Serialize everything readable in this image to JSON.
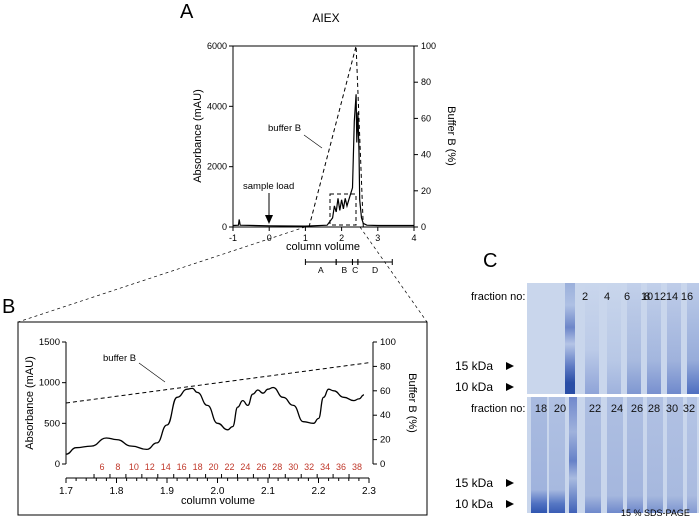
{
  "panels": {
    "a": "A",
    "b": "B",
    "c": "C"
  },
  "chart_data": [
    {
      "type": "line",
      "title": "AIEX",
      "xlabel": "column volume",
      "ylabel": "Absorbance (mAU)",
      "ylabel_right": "Buffer B (%)",
      "xlim": [
        -1,
        4
      ],
      "ylim": [
        0,
        6000
      ],
      "ylim_right": [
        0,
        100
      ],
      "x_ticks": [
        "-1",
        "0",
        "1",
        "2",
        "3",
        "4"
      ],
      "y_ticks": [
        "0",
        "2000",
        "4000",
        "6000"
      ],
      "y_right_ticks": [
        "0",
        "20",
        "40",
        "60",
        "80",
        "100"
      ],
      "series": [
        {
          "name": "absorbance",
          "x": [
            -1,
            -0.85,
            -0.83,
            -0.8,
            0,
            1.0,
            1.6,
            1.75,
            1.8,
            1.85,
            1.9,
            1.95,
            2.0,
            2.05,
            2.1,
            2.15,
            2.2,
            2.3,
            2.35,
            2.4,
            2.42,
            2.45,
            2.48,
            2.5,
            2.55,
            2.6,
            2.7,
            3.0,
            4.0
          ],
          "y": [
            50,
            60,
            250,
            60,
            40,
            30,
            60,
            300,
            700,
            500,
            950,
            550,
            900,
            600,
            950,
            700,
            900,
            1300,
            3500,
            4400,
            2800,
            3800,
            2500,
            900,
            300,
            120,
            60,
            50,
            50
          ]
        },
        {
          "name": "buffer B",
          "x": [
            1.1,
            2.4,
            2.6
          ],
          "y": [
            0,
            100,
            0
          ]
        }
      ],
      "fractions": [
        {
          "label": "A",
          "start": 1.0,
          "end": 1.85
        },
        {
          "label": "B",
          "start": 1.85,
          "end": 2.3
        },
        {
          "label": "C",
          "start": 2.3,
          "end": 2.45
        },
        {
          "label": "D",
          "start": 2.45,
          "end": 3.4
        }
      ],
      "annotations": [
        "buffer B",
        "sample load"
      ],
      "sample_load_x": 0
    },
    {
      "type": "line",
      "xlabel": "column volume",
      "ylabel": "Absorbance (mAU)",
      "ylabel_right": "Buffer B (%)",
      "xlim": [
        1.7,
        2.3
      ],
      "ylim": [
        0,
        1500
      ],
      "ylim_right": [
        0,
        100
      ],
      "x_ticks": [
        "1.7",
        "1.8",
        "1.9",
        "2.0",
        "2.1",
        "2.2",
        "2.3"
      ],
      "y_ticks": [
        "0",
        "500",
        "1000",
        "1500"
      ],
      "y_right_ticks": [
        "0",
        "20",
        "40",
        "60",
        "80",
        "100"
      ],
      "series": [
        {
          "name": "absorbance",
          "x": [
            1.7,
            1.72,
            1.75,
            1.78,
            1.8,
            1.83,
            1.86,
            1.88,
            1.9,
            1.92,
            1.94,
            1.95,
            1.96,
            1.98,
            2.0,
            2.02,
            2.03,
            2.04,
            2.05,
            2.06,
            2.07,
            2.08,
            2.09,
            2.1,
            2.11,
            2.13,
            2.15,
            2.17,
            2.19,
            2.2,
            2.21,
            2.22,
            2.23,
            2.25,
            2.27,
            2.28,
            2.29
          ],
          "y": [
            120,
            200,
            220,
            320,
            300,
            220,
            180,
            260,
            480,
            820,
            920,
            930,
            880,
            720,
            500,
            420,
            460,
            700,
            780,
            720,
            860,
            910,
            870,
            920,
            940,
            820,
            720,
            520,
            500,
            560,
            820,
            920,
            900,
            820,
            780,
            800,
            850
          ]
        },
        {
          "name": "buffer B",
          "x": [
            1.7,
            2.3
          ],
          "y": [
            50,
            83
          ]
        }
      ],
      "fraction_labels": [
        "6",
        "8",
        "10",
        "12",
        "14",
        "16",
        "18",
        "20",
        "22",
        "24",
        "26",
        "28",
        "30",
        "32",
        "34",
        "36",
        "38"
      ],
      "fraction_color": "#c0392b",
      "annotations": [
        "buffer B"
      ]
    }
  ],
  "gel": {
    "top_label": "fraction no:",
    "bottom_label": "fraction no:",
    "top_lanes": [
      "2",
      "4",
      "6",
      "8",
      "10",
      "12",
      "14",
      "16"
    ],
    "bottom_lanes": [
      "18",
      "20",
      "22",
      "24",
      "26",
      "28",
      "30",
      "32"
    ],
    "marker_15": "15 kDa",
    "marker_10": "10 kDa",
    "caption": "15 % SDS-PAGE"
  }
}
